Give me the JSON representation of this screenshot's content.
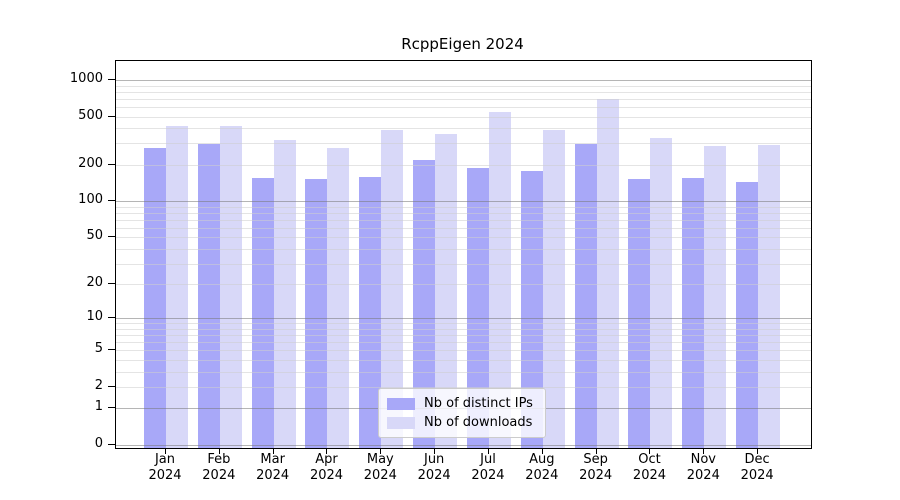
{
  "figure": {
    "background": "#ffffff",
    "text_color": "#000000"
  },
  "chart_data": {
    "type": "bar",
    "title": "RcppEigen 2024",
    "categories": [
      "Jan",
      "Feb",
      "Mar",
      "Apr",
      "May",
      "Jun",
      "Jul",
      "Aug",
      "Sep",
      "Oct",
      "Nov",
      "Dec"
    ],
    "category_sublabel": "2024",
    "series": [
      {
        "name": "Nb of distinct IPs",
        "color": "#a8a8f8",
        "values": [
          275,
          295,
          156,
          153,
          160,
          220,
          190,
          178,
          295,
          152,
          156,
          145
        ]
      },
      {
        "name": "Nb of downloads",
        "color": "#d8d8f8",
        "values": [
          420,
          422,
          322,
          275,
          387,
          359,
          545,
          388,
          700,
          330,
          288,
          291
        ]
      }
    ],
    "xlabel": "",
    "ylabel": "",
    "y_tick_values": [
      0,
      1,
      2,
      5,
      10,
      20,
      50,
      100,
      200,
      500,
      1000
    ],
    "scale": "log10(value+1)",
    "ylim": [
      0,
      1430
    ],
    "grid": "horizontal; faint minor lines at 2-9 per decade, darker lines at 0, 1, 10, 100, 1000",
    "legend_position": "lower center inside plot",
    "spine_color": "#000000",
    "gridline_minor_color": "#e7e7e7",
    "gridline_major_color": "#b4b4b4"
  }
}
